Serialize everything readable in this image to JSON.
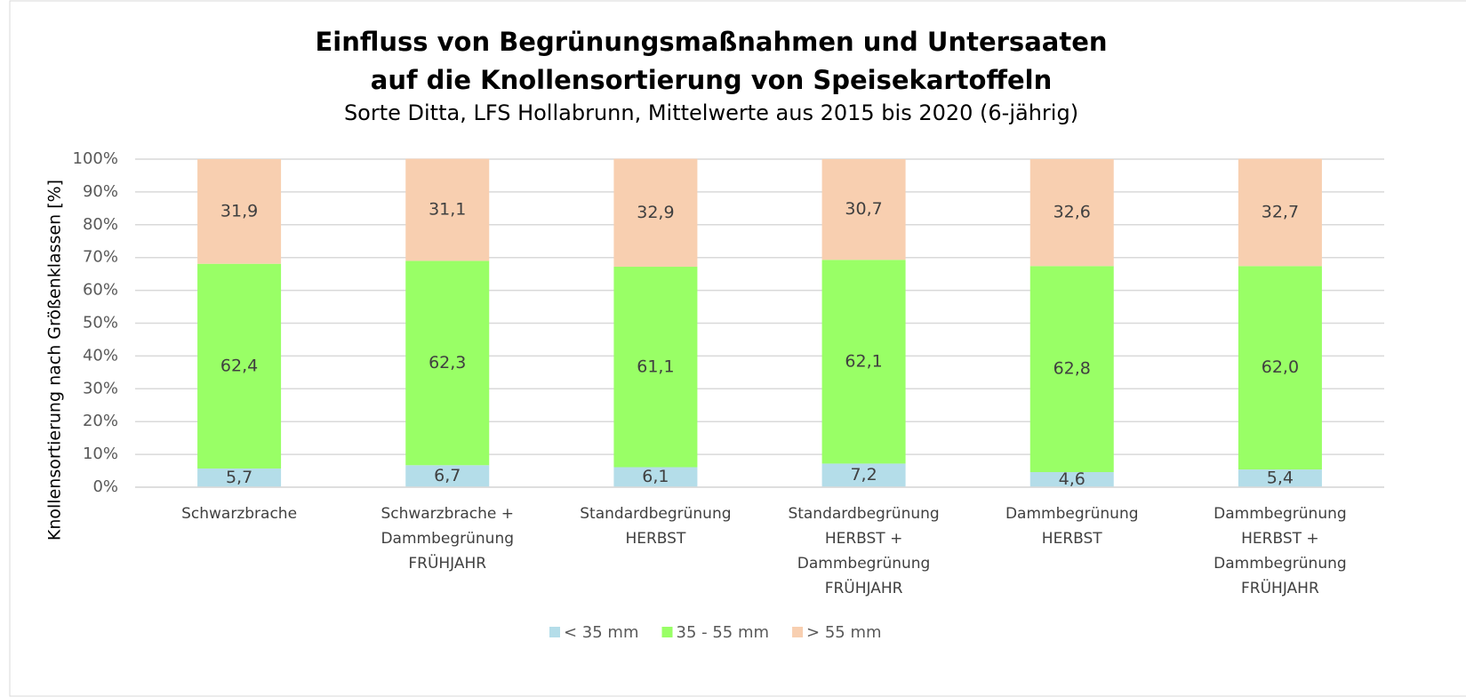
{
  "chart_data": {
    "type": "stacked_bar",
    "title": "Einfluss von Begrünungsmaßnahmen und Untersaaten\nauf die Knollensortierung von Speisekartoffeln",
    "subtitle": "Sorte Ditta, LFS Hollabrunn, Mittelwerte aus 2015 bis 2020 (6-jährig)",
    "y_label": "Knollensortierung nach Größenklassen [%]",
    "categories": [
      "Schwarzbrache",
      "Schwarzbrache +\nDammbegrünung\nFRÜHJAHR",
      "Standardbegrünung\nHERBST",
      "Standardbegrünung\nHERBST +\nDammbegrünung\nFRÜHJAHR",
      "Dammbegrünung\nHERBST",
      "Dammbegrünung\nHERBST +\nDammbegrünung\nFRÜHJAHR"
    ],
    "series": [
      {
        "name": "< 35 mm",
        "color": "#b4dde9",
        "values": [
          5.7,
          6.7,
          6.1,
          7.2,
          4.6,
          5.4
        ],
        "value_labels": [
          "5,7",
          "6,7",
          "6,1",
          "7,2",
          "4,6",
          "5,4"
        ]
      },
      {
        "name": "35 - 55 mm",
        "color": "#99ff66",
        "values": [
          62.4,
          62.3,
          61.1,
          62.1,
          62.8,
          62.0
        ],
        "value_labels": [
          "62,4",
          "62,3",
          "61,1",
          "62,1",
          "62,8",
          "62,0"
        ]
      },
      {
        "name": "> 55 mm",
        "color": "#f8cfb0",
        "values": [
          31.9,
          31.1,
          32.9,
          30.7,
          32.6,
          32.7
        ],
        "value_labels": [
          "31,9",
          "31,1",
          "32,9",
          "30,7",
          "32,6",
          "32,7"
        ]
      }
    ],
    "ylim": [
      0,
      100
    ],
    "yticks": [
      {
        "value": 0,
        "label": "0%"
      },
      {
        "value": 10,
        "label": "10%"
      },
      {
        "value": 20,
        "label": "20%"
      },
      {
        "value": 30,
        "label": "30%"
      },
      {
        "value": 40,
        "label": "40%"
      },
      {
        "value": 50,
        "label": "50%"
      },
      {
        "value": 60,
        "label": "60%"
      },
      {
        "value": 70,
        "label": "70%"
      },
      {
        "value": 80,
        "label": "80%"
      },
      {
        "value": 90,
        "label": "90%"
      },
      {
        "value": 100,
        "label": "100%"
      }
    ],
    "grid": true,
    "legend": "bottom"
  }
}
